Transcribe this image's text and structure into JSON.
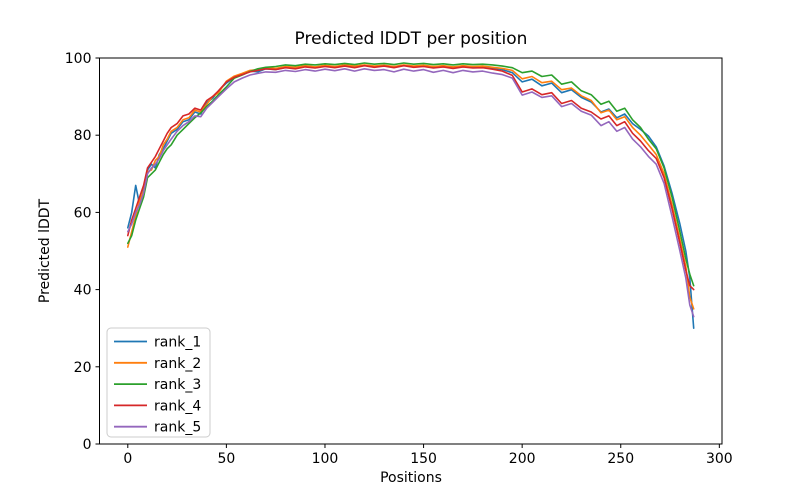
{
  "chart_data": {
    "type": "line",
    "title": "Predicted lDDT per position",
    "xlabel": "Positions",
    "ylabel": "Predicted lDDT",
    "xlim": [
      -14.35,
      301.35
    ],
    "ylim": [
      0,
      100
    ],
    "xticks": [
      0,
      50,
      100,
      150,
      200,
      250,
      300
    ],
    "yticks": [
      0,
      20,
      40,
      60,
      80,
      100
    ],
    "grid": false,
    "legend_position": "lower left",
    "x": [
      0,
      2,
      4,
      6,
      8,
      10,
      12,
      14,
      16,
      18,
      20,
      22,
      25,
      28,
      31,
      34,
      37,
      40,
      43,
      46,
      50,
      54,
      58,
      62,
      66,
      70,
      75,
      80,
      85,
      90,
      95,
      100,
      105,
      110,
      115,
      120,
      125,
      130,
      135,
      140,
      145,
      150,
      155,
      160,
      165,
      170,
      175,
      180,
      185,
      190,
      195,
      200,
      205,
      210,
      215,
      220,
      225,
      230,
      235,
      240,
      244,
      248,
      252,
      256,
      260,
      264,
      268,
      272,
      276,
      280,
      283,
      285,
      287
    ],
    "series": [
      {
        "name": "rank_1",
        "color": "#1f77b4",
        "values": [
          56,
          60,
          67,
          62,
          66,
          71,
          72.5,
          71.5,
          75,
          76.5,
          78.5,
          80.5,
          81.5,
          83.5,
          84,
          86,
          85.5,
          88.5,
          89.5,
          91.5,
          93.5,
          95,
          95.8,
          96.6,
          96.4,
          97.2,
          97,
          97.6,
          97.3,
          97.8,
          97.5,
          97.9,
          97.6,
          98,
          97.7,
          98.1,
          97.8,
          98,
          97.6,
          98.1,
          97.7,
          98,
          97.6,
          97.9,
          97.5,
          97.9,
          97.6,
          97.8,
          97.4,
          97,
          96.2,
          93.8,
          94.5,
          92.8,
          93.5,
          91,
          91.8,
          89.8,
          88.6,
          86,
          86.8,
          84.5,
          85.5,
          83,
          81.5,
          79.8,
          77,
          72,
          65,
          57,
          50,
          43,
          30
        ]
      },
      {
        "name": "rank_2",
        "color": "#ff7f0e",
        "values": [
          51,
          55,
          59,
          63,
          65.5,
          70.5,
          71,
          73.5,
          74.5,
          77.5,
          79,
          81,
          82,
          84,
          84.5,
          86.5,
          86,
          88,
          90,
          91,
          94,
          95.3,
          96,
          96.8,
          97,
          97.4,
          97.3,
          97.8,
          97.6,
          98,
          97.7,
          98.1,
          97.8,
          98.2,
          97.9,
          98.2,
          97.9,
          98.1,
          97.8,
          98.2,
          97.9,
          98.1,
          97.8,
          98,
          97.7,
          98,
          97.8,
          97.9,
          97.6,
          97.3,
          96.8,
          94.6,
          95.2,
          93.6,
          94,
          91.8,
          92.2,
          90.2,
          89,
          85.8,
          86.5,
          84,
          84.8,
          82,
          80,
          77.5,
          75,
          70,
          62,
          53,
          46,
          38,
          35
        ]
      },
      {
        "name": "rank_3",
        "color": "#2ca02c",
        "values": [
          52,
          54,
          58,
          61,
          64,
          69,
          70,
          71,
          73,
          75,
          76.5,
          77.5,
          80,
          81.5,
          83,
          84.5,
          85.8,
          87.5,
          88.8,
          90.5,
          92.5,
          94.8,
          95.6,
          96.5,
          97.2,
          97.6,
          97.8,
          98.2,
          98,
          98.4,
          98.2,
          98.5,
          98.3,
          98.6,
          98.3,
          98.7,
          98.4,
          98.6,
          98.3,
          98.7,
          98.4,
          98.6,
          98.3,
          98.5,
          98.2,
          98.5,
          98.3,
          98.4,
          98.2,
          97.9,
          97.5,
          96.2,
          96.6,
          95.2,
          95.6,
          93.2,
          93.8,
          91.5,
          90.5,
          88,
          88.8,
          86.2,
          87,
          84,
          82,
          79,
          76.5,
          71.5,
          64,
          55,
          48,
          44,
          41
        ]
      },
      {
        "name": "rank_4",
        "color": "#d62728",
        "values": [
          54,
          58,
          61,
          64,
          67,
          71.5,
          73,
          74.5,
          76.5,
          78.5,
          80.5,
          82,
          83,
          85,
          85.5,
          87,
          86.5,
          89,
          90,
          91.5,
          93.8,
          95,
          95.7,
          96.4,
          96.8,
          97.2,
          97,
          97.5,
          97.2,
          97.7,
          97.4,
          97.8,
          97.5,
          97.9,
          97.5,
          98,
          97.6,
          97.9,
          97.5,
          98,
          97.6,
          97.8,
          97.4,
          97.7,
          97.3,
          97.7,
          97.4,
          97.5,
          97.1,
          96.6,
          95.5,
          91.2,
          92,
          90.5,
          91,
          88.2,
          89,
          87,
          86,
          84.2,
          85,
          82.5,
          83.5,
          80.5,
          78.5,
          76,
          74,
          69,
          61,
          52,
          45,
          41,
          40
        ]
      },
      {
        "name": "rank_5",
        "color": "#9467bd",
        "values": [
          55,
          57,
          60,
          62,
          65,
          70,
          71.5,
          72.5,
          74,
          76,
          77.5,
          79,
          81,
          82.5,
          83.5,
          85,
          84.8,
          87,
          88.5,
          90,
          92,
          93.8,
          94.8,
          95.6,
          96,
          96.4,
          96.3,
          96.8,
          96.5,
          97,
          96.6,
          97.1,
          96.7,
          97.2,
          96.6,
          97.2,
          96.8,
          97,
          96.4,
          97.1,
          96.6,
          97,
          96.3,
          96.8,
          96.2,
          96.8,
          96.4,
          96.6,
          96.1,
          95.7,
          94.8,
          90.4,
          91.2,
          89.8,
          90.2,
          87.4,
          88.2,
          86.2,
          85.2,
          82.5,
          83.5,
          81,
          82,
          79,
          77,
          74.5,
          72.5,
          67.5,
          59,
          50,
          43,
          36,
          33
        ]
      }
    ],
    "legend_labels": [
      "rank_1",
      "rank_2",
      "rank_3",
      "rank_4",
      "rank_5"
    ]
  },
  "figure": {
    "background_color": "#ffffff",
    "axis_color": "#000000",
    "legend_border_color": "#cccccc"
  }
}
